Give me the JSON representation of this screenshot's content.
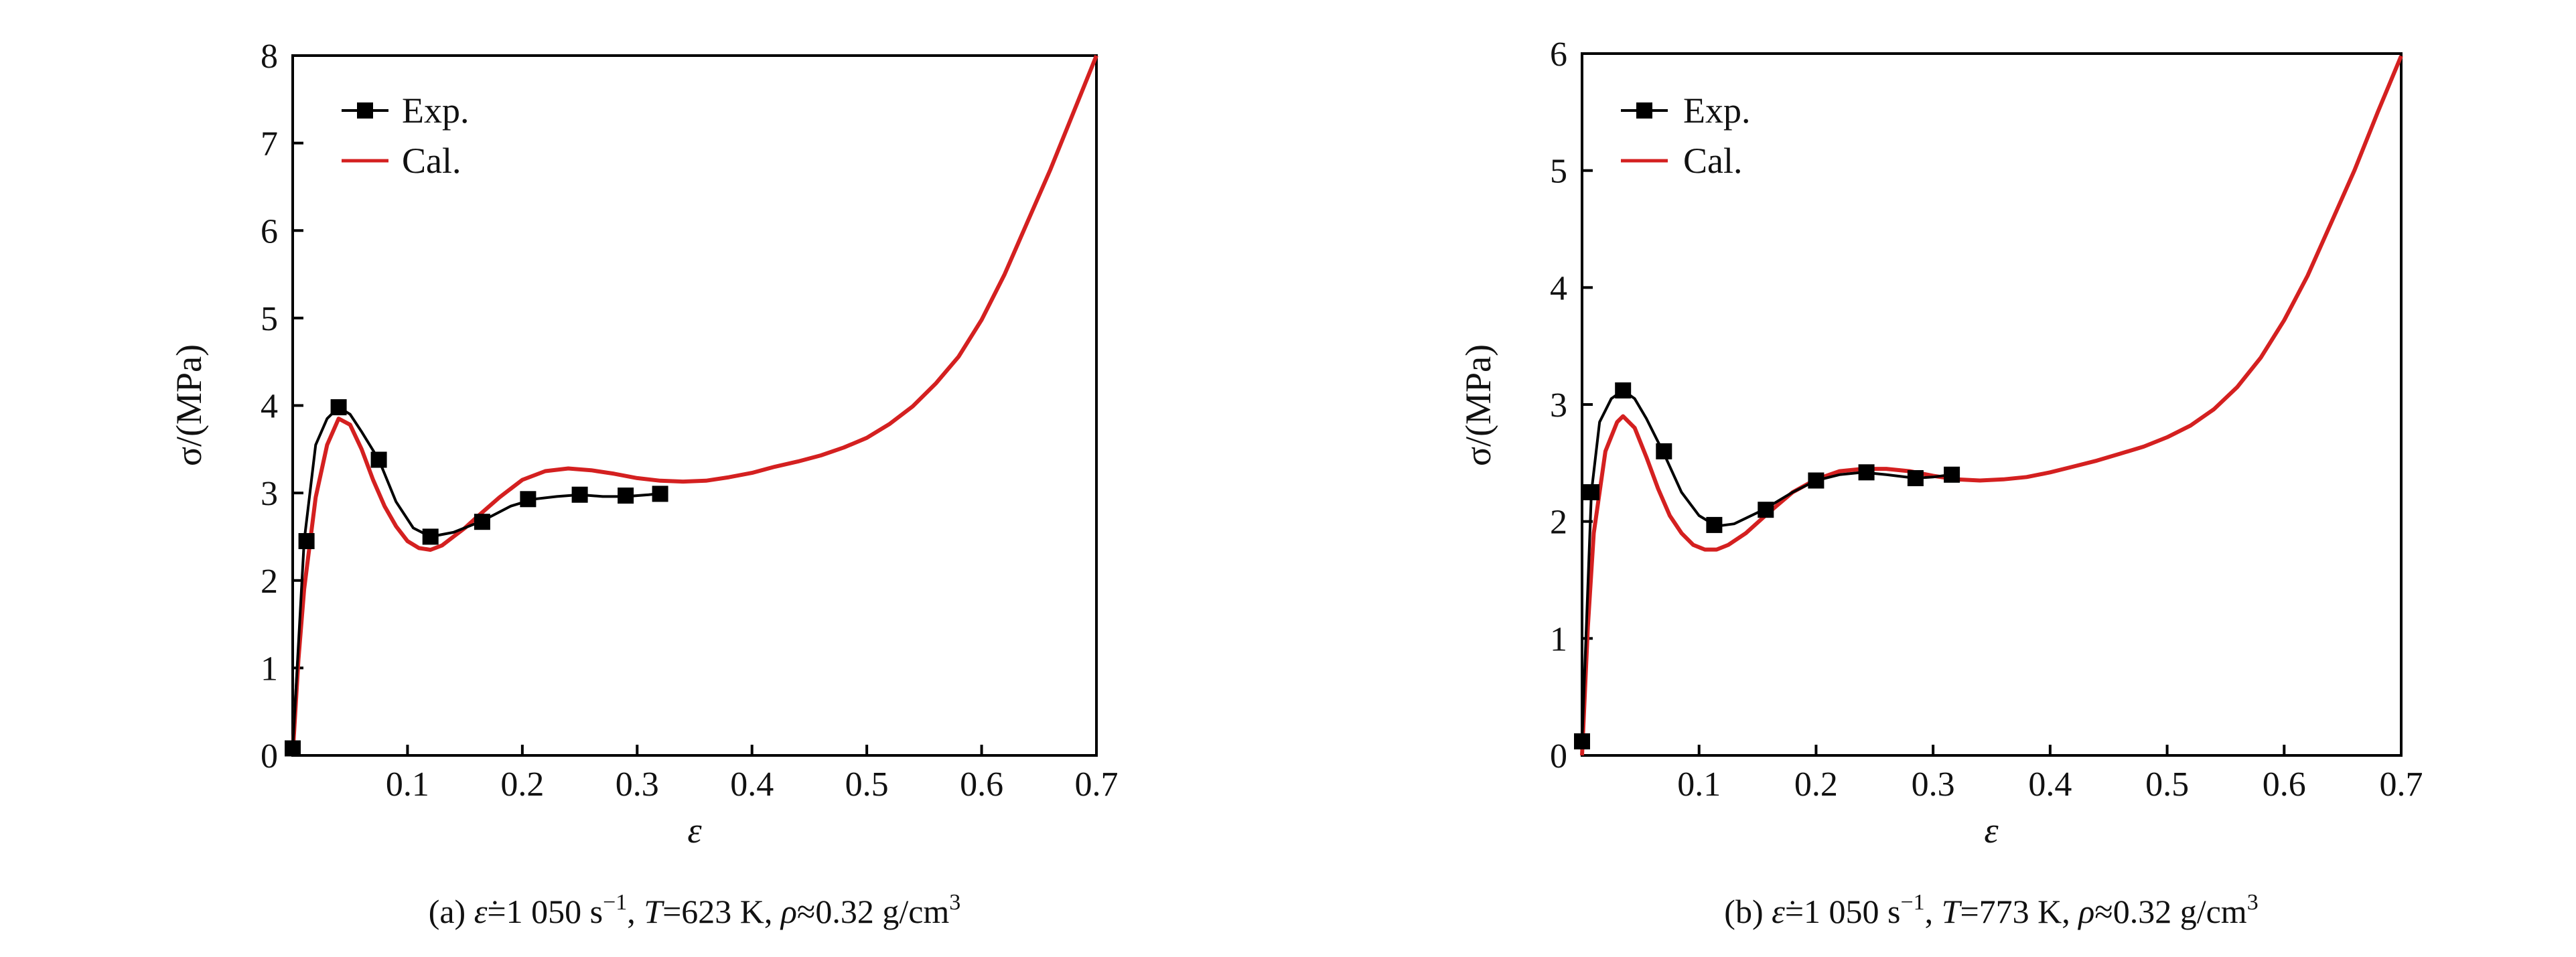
{
  "chart_data": [
    {
      "type": "line",
      "panel": "a",
      "caption": {
        "prefix": "(a) ",
        "rate_symbol": "ε̇",
        "rate_value": "=1 050  s",
        "rate_exp": "−1",
        "sep1": ", ",
        "temp_symbol": "T",
        "temp_value": "=623 K, ",
        "dens_symbol": "ρ",
        "dens_value": "≈0.32 g/cm",
        "dens_exp": "3"
      },
      "xlabel": "ε",
      "ylabel": "σ/(MPa)",
      "xlim": [
        0,
        0.7
      ],
      "ylim": [
        0,
        8
      ],
      "xticks": [
        0.1,
        0.2,
        0.3,
        0.4,
        0.5,
        0.6,
        0.7
      ],
      "xtick_labels": [
        "0.1",
        "0.2",
        "0.3",
        "0.4",
        "0.5",
        "0.6",
        "0.7"
      ],
      "yticks": [
        0,
        1,
        2,
        3,
        4,
        5,
        6,
        7,
        8
      ],
      "ytick_labels": [
        "0",
        "1",
        "2",
        "3",
        "4",
        "5",
        "6",
        "7",
        "8"
      ],
      "legend": {
        "position": "top-left",
        "exp_label": "Exp.",
        "cal_label": "Cal."
      },
      "series": [
        {
          "name": "Exp.",
          "color": "#000000",
          "marker": "square",
          "x": [
            0,
            0.01,
            0.02,
            0.03,
            0.04,
            0.05,
            0.06,
            0.075,
            0.09,
            0.105,
            0.12,
            0.14,
            0.165,
            0.19,
            0.21,
            0.23,
            0.25,
            0.27,
            0.29,
            0.31,
            0.325
          ],
          "y": [
            0.08,
            2.45,
            3.55,
            3.85,
            3.98,
            3.9,
            3.7,
            3.38,
            2.9,
            2.6,
            2.5,
            2.55,
            2.68,
            2.85,
            2.93,
            2.96,
            2.98,
            2.96,
            2.96,
            2.98,
            3.0
          ],
          "marker_x": [
            0,
            0.012,
            0.04,
            0.075,
            0.12,
            0.165,
            0.205,
            0.25,
            0.29,
            0.32
          ],
          "marker_y": [
            0.08,
            2.45,
            3.98,
            3.38,
            2.5,
            2.67,
            2.93,
            2.98,
            2.97,
            2.99
          ]
        },
        {
          "name": "Cal.",
          "color": "#d42020",
          "x": [
            0,
            0.005,
            0.01,
            0.02,
            0.03,
            0.04,
            0.05,
            0.06,
            0.07,
            0.08,
            0.09,
            0.1,
            0.11,
            0.12,
            0.13,
            0.14,
            0.15,
            0.16,
            0.18,
            0.2,
            0.22,
            0.24,
            0.26,
            0.28,
            0.3,
            0.32,
            0.34,
            0.36,
            0.38,
            0.4,
            0.42,
            0.44,
            0.46,
            0.48,
            0.5,
            0.52,
            0.54,
            0.56,
            0.58,
            0.6,
            0.62,
            0.64,
            0.66,
            0.68,
            0.7
          ],
          "y": [
            0,
            1.1,
            1.9,
            2.95,
            3.55,
            3.85,
            3.78,
            3.5,
            3.15,
            2.85,
            2.62,
            2.45,
            2.37,
            2.35,
            2.4,
            2.5,
            2.6,
            2.72,
            2.95,
            3.15,
            3.25,
            3.28,
            3.26,
            3.22,
            3.17,
            3.14,
            3.13,
            3.14,
            3.18,
            3.23,
            3.3,
            3.36,
            3.43,
            3.52,
            3.63,
            3.79,
            3.99,
            4.25,
            4.56,
            4.98,
            5.5,
            6.1,
            6.7,
            7.35,
            8.0
          ]
        }
      ]
    },
    {
      "type": "line",
      "panel": "b",
      "caption": {
        "prefix": "(b) ",
        "rate_symbol": "ε̇",
        "rate_value": "=1 050 s",
        "rate_exp": "−1",
        "sep1": ", ",
        "temp_symbol": "T",
        "temp_value": "=773 K, ",
        "dens_symbol": "ρ",
        "dens_value": "≈0.32 g/cm",
        "dens_exp": "3"
      },
      "xlabel": "ε",
      "ylabel": "σ/(MPa)",
      "xlim": [
        0,
        0.7
      ],
      "ylim": [
        0,
        6
      ],
      "xticks": [
        0.1,
        0.2,
        0.3,
        0.4,
        0.5,
        0.6,
        0.7
      ],
      "xtick_labels": [
        "0.1",
        "0.2",
        "0.3",
        "0.4",
        "0.5",
        "0.6",
        "0.7"
      ],
      "yticks": [
        0,
        1,
        2,
        3,
        4,
        5,
        6
      ],
      "ytick_labels": [
        "0",
        "1",
        "2",
        "3",
        "4",
        "5",
        "6"
      ],
      "legend": {
        "position": "top-left",
        "exp_label": "Exp.",
        "cal_label": "Cal."
      },
      "series": [
        {
          "name": "Exp.",
          "color": "#000000",
          "marker": "square",
          "x": [
            0,
            0.008,
            0.015,
            0.025,
            0.035,
            0.045,
            0.055,
            0.07,
            0.085,
            0.1,
            0.115,
            0.13,
            0.155,
            0.18,
            0.2,
            0.22,
            0.24,
            0.26,
            0.285,
            0.3,
            0.315
          ],
          "y": [
            0.12,
            2.25,
            2.85,
            3.05,
            3.12,
            3.05,
            2.88,
            2.58,
            2.25,
            2.05,
            1.96,
            1.98,
            2.1,
            2.25,
            2.35,
            2.4,
            2.42,
            2.4,
            2.37,
            2.38,
            2.4
          ],
          "marker_x": [
            0,
            0.008,
            0.035,
            0.07,
            0.113,
            0.157,
            0.2,
            0.243,
            0.285,
            0.316
          ],
          "marker_y": [
            0.12,
            2.25,
            3.12,
            2.6,
            1.97,
            2.1,
            2.35,
            2.42,
            2.37,
            2.4
          ]
        },
        {
          "name": "Cal.",
          "color": "#d42020",
          "x": [
            0,
            0.005,
            0.01,
            0.02,
            0.03,
            0.035,
            0.045,
            0.055,
            0.065,
            0.075,
            0.085,
            0.095,
            0.105,
            0.115,
            0.125,
            0.14,
            0.16,
            0.18,
            0.2,
            0.22,
            0.24,
            0.26,
            0.28,
            0.3,
            0.32,
            0.34,
            0.36,
            0.38,
            0.4,
            0.42,
            0.44,
            0.46,
            0.48,
            0.5,
            0.52,
            0.54,
            0.56,
            0.58,
            0.6,
            0.62,
            0.64,
            0.66,
            0.68,
            0.7
          ],
          "y": [
            0,
            1.1,
            1.9,
            2.6,
            2.85,
            2.9,
            2.8,
            2.55,
            2.28,
            2.05,
            1.9,
            1.8,
            1.76,
            1.76,
            1.8,
            1.9,
            2.08,
            2.25,
            2.36,
            2.43,
            2.45,
            2.45,
            2.43,
            2.39,
            2.36,
            2.35,
            2.36,
            2.38,
            2.42,
            2.47,
            2.52,
            2.58,
            2.64,
            2.72,
            2.82,
            2.96,
            3.15,
            3.4,
            3.72,
            4.1,
            4.55,
            5.0,
            5.5,
            5.98
          ]
        }
      ]
    }
  ]
}
